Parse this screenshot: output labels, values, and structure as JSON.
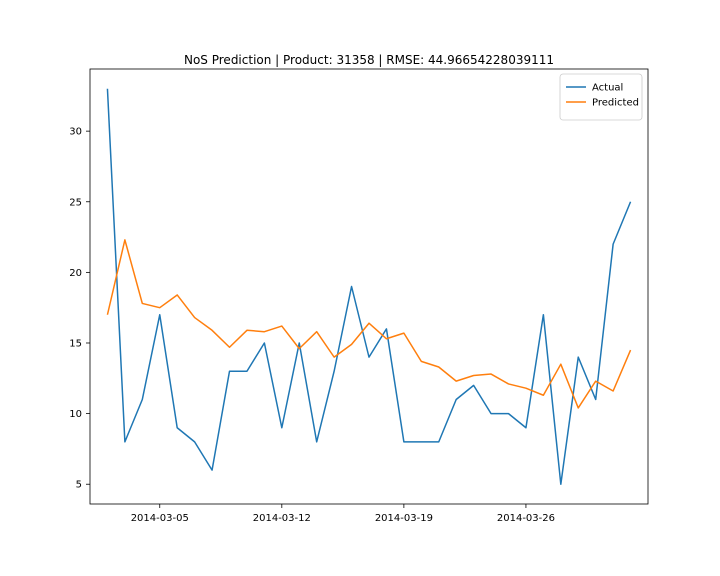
{
  "chart_data": {
    "type": "line",
    "title": "NoS Prediction | Product: 31358 | RMSE: 44.96654228039111",
    "xlabel": "",
    "ylabel": "",
    "x": [
      "2014-03-02",
      "2014-03-03",
      "2014-03-04",
      "2014-03-05",
      "2014-03-06",
      "2014-03-07",
      "2014-03-08",
      "2014-03-09",
      "2014-03-10",
      "2014-03-11",
      "2014-03-12",
      "2014-03-13",
      "2014-03-14",
      "2014-03-15",
      "2014-03-16",
      "2014-03-17",
      "2014-03-18",
      "2014-03-19",
      "2014-03-20",
      "2014-03-21",
      "2014-03-22",
      "2014-03-23",
      "2014-03-24",
      "2014-03-25",
      "2014-03-26",
      "2014-03-27",
      "2014-03-28",
      "2014-03-29",
      "2014-03-30",
      "2014-03-31",
      "2014-04-01"
    ],
    "series": [
      {
        "name": "Actual",
        "color": "#1f77b4",
        "values": [
          33,
          8,
          11,
          17,
          9,
          8,
          6,
          13,
          13,
          15,
          9,
          15,
          8,
          13,
          19,
          14,
          16,
          8,
          8,
          8,
          11,
          12,
          10,
          10,
          9,
          17,
          5,
          14,
          11,
          22,
          25
        ]
      },
      {
        "name": "Predicted",
        "color": "#ff7f0e",
        "values": [
          17.0,
          22.3,
          17.8,
          17.5,
          18.4,
          16.8,
          15.9,
          14.7,
          15.9,
          15.8,
          16.2,
          14.6,
          15.8,
          14.0,
          14.9,
          16.4,
          15.3,
          15.7,
          13.7,
          13.3,
          12.3,
          12.7,
          12.8,
          12.1,
          11.8,
          11.3,
          13.5,
          10.4,
          12.3,
          11.6,
          14.5
        ]
      }
    ],
    "x_ticks": [
      "2014-03-05",
      "2014-03-12",
      "2014-03-19",
      "2014-03-26"
    ],
    "y_ticks": [
      5,
      10,
      15,
      20,
      25,
      30
    ],
    "xlim": [
      "2014-02-29",
      "2014-04-02"
    ],
    "ylim": [
      3.6,
      34.4
    ],
    "legend": "top-right",
    "grid": false
  }
}
